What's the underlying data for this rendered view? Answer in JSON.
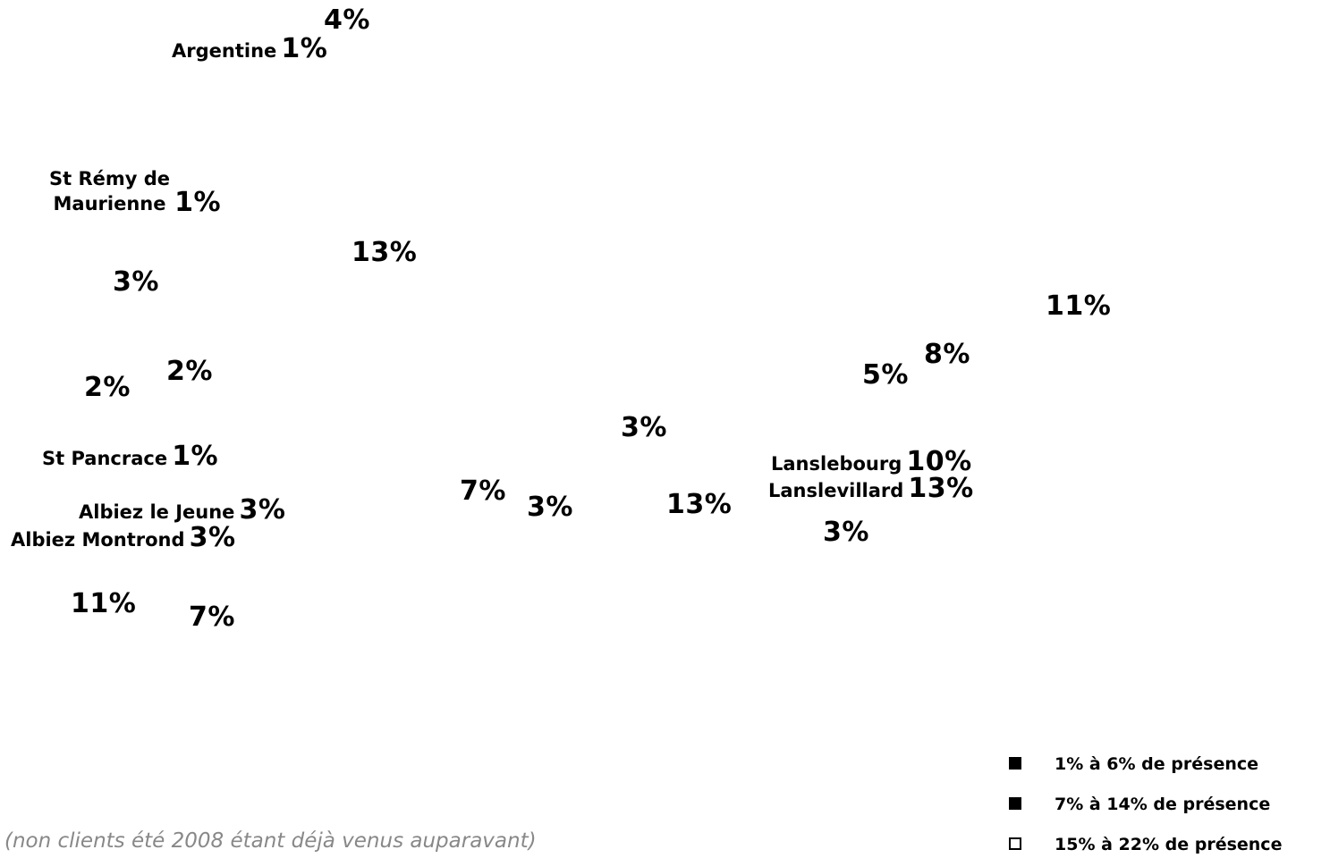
{
  "markers": [
    {
      "id": "m-4-top",
      "label": "",
      "value": "4%"
    },
    {
      "id": "m-argentine",
      "label": "Argentine",
      "value": "1%"
    },
    {
      "id": "m-st-remy",
      "label_line1": "St Rémy de",
      "label_line2": "Maurienne",
      "value": "1%"
    },
    {
      "id": "m-13-upper",
      "label": "",
      "value": "13%"
    },
    {
      "id": "m-3-left",
      "label": "",
      "value": "3%"
    },
    {
      "id": "m-11-right",
      "label": "",
      "value": "11%"
    },
    {
      "id": "m-8",
      "label": "",
      "value": "8%"
    },
    {
      "id": "m-5",
      "label": "",
      "value": "5%"
    },
    {
      "id": "m-2-a",
      "label": "",
      "value": "2%"
    },
    {
      "id": "m-2-b",
      "label": "",
      "value": "2%"
    },
    {
      "id": "m-3-center",
      "label": "",
      "value": "3%"
    },
    {
      "id": "m-st-pancrace",
      "label": "St Pancrace",
      "value": "1%"
    },
    {
      "id": "m-lanslebourg",
      "label": "Lanslebourg",
      "value": "10%"
    },
    {
      "id": "m-lanslevillard",
      "label": "Lanslevillard",
      "value": "13%"
    },
    {
      "id": "m-7-center",
      "label": "",
      "value": "7%"
    },
    {
      "id": "m-3-center-b",
      "label": "",
      "value": "3%"
    },
    {
      "id": "m-13-center",
      "label": "",
      "value": "13%"
    },
    {
      "id": "m-albiez-jeune",
      "label": "Albiez le Jeune",
      "value": "3%"
    },
    {
      "id": "m-albiez-montrond",
      "label": "Albiez Montrond",
      "value": "3%"
    },
    {
      "id": "m-3-right",
      "label": "",
      "value": "3%"
    },
    {
      "id": "m-11-left",
      "label": "",
      "value": "11%"
    },
    {
      "id": "m-7-bottom",
      "label": "",
      "value": "7%"
    }
  ],
  "footnote": "(non clients été 2008 étant déjà venus auparavant)",
  "legend": [
    {
      "label": "1% à 6% de présence",
      "swatch_color": "#000000"
    },
    {
      "label": "7% à 14% de présence",
      "swatch_color": "#000000"
    },
    {
      "label": "15% à 22% de présence",
      "swatch_color": "#ffffff"
    }
  ]
}
